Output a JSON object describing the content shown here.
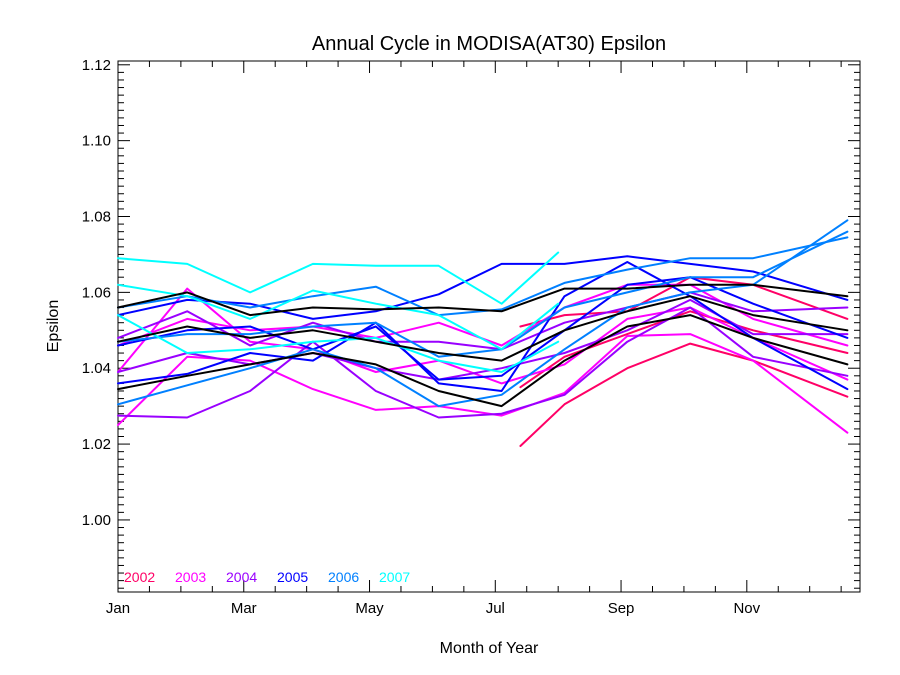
{
  "chart_data": {
    "type": "line",
    "title": "Annual Cycle in MODISA(AT30) Epsilon",
    "xlabel": "Month of Year",
    "ylabel": "Epsilon",
    "xlim": [
      1,
      12.8
    ],
    "ylim": [
      0.981,
      1.121
    ],
    "x_ticks": [
      1,
      3,
      5,
      7,
      9,
      11
    ],
    "x_tick_labels": [
      "Jan",
      "Mar",
      "May",
      "Jul",
      "Sep",
      "Nov"
    ],
    "y_ticks": [
      1.0,
      1.02,
      1.04,
      1.06,
      1.08,
      1.1,
      1.12
    ],
    "y_tick_labels": [
      "1.00",
      "1.02",
      "1.04",
      "1.06",
      "1.08",
      "1.10",
      "1.12"
    ],
    "legend_position": "bottom-left",
    "legend": [
      {
        "label": "2002",
        "color": "#ff0066"
      },
      {
        "label": "2003",
        "color": "#ff00ff"
      },
      {
        "label": "2004",
        "color": "#9900ff"
      },
      {
        "label": "2005",
        "color": "#0000ff"
      },
      {
        "label": "2006",
        "color": "#0080ff"
      },
      {
        "label": "2007",
        "color": "#00ffff"
      }
    ],
    "series": [
      {
        "color": "#ff0066",
        "x": [
          7.4,
          8.1,
          9.1,
          10.1,
          11.1,
          12.6
        ],
        "y": [
          1.0195,
          1.0305,
          1.04,
          1.0465,
          1.042,
          1.0325
        ]
      },
      {
        "color": "#ff0066",
        "x": [
          7.4,
          8.1,
          9.1,
          10.1,
          11.1,
          12.6
        ],
        "y": [
          1.035,
          1.043,
          1.049,
          1.055,
          1.05,
          1.044
        ]
      },
      {
        "color": "#ff0066",
        "x": [
          7.4,
          8.1,
          9.1,
          10.1,
          11.1,
          12.6
        ],
        "y": [
          1.051,
          1.054,
          1.055,
          1.064,
          1.062,
          1.053
        ]
      },
      {
        "color": "#ff00ff",
        "x": [
          1,
          2.1,
          3.1,
          4.1,
          5.1,
          6.1,
          7.1,
          8.1,
          9.1,
          10.1,
          11.1,
          12.6
        ],
        "y": [
          1.025,
          1.043,
          1.042,
          1.0345,
          1.029,
          1.03,
          1.0275,
          1.0335,
          1.0485,
          1.049,
          1.042,
          1.023
        ]
      },
      {
        "color": "#ff00ff",
        "x": [
          1,
          2.1,
          3.1,
          4.1,
          5.1,
          6.1,
          7.1,
          8.1,
          9.1,
          10.1,
          11.1,
          12.6
        ],
        "y": [
          1.039,
          1.061,
          1.047,
          1.045,
          1.039,
          1.042,
          1.036,
          1.041,
          1.053,
          1.056,
          1.048,
          1.037
        ]
      },
      {
        "color": "#ff00ff",
        "x": [
          1,
          2.1,
          3.1,
          4.1,
          5.1,
          6.1,
          7.1,
          8.1,
          9.1,
          10.1,
          11.1,
          12.6
        ],
        "y": [
          1.046,
          1.053,
          1.05,
          1.051,
          1.048,
          1.052,
          1.046,
          1.056,
          1.062,
          1.062,
          1.053,
          1.046
        ]
      },
      {
        "color": "#9900ff",
        "x": [
          1,
          2.1,
          3.1,
          4.1,
          5.1,
          6.1,
          7.1,
          8.1,
          9.1,
          10.1,
          11.1,
          12.6
        ],
        "y": [
          1.0275,
          1.027,
          1.034,
          1.047,
          1.034,
          1.027,
          1.028,
          1.033,
          1.047,
          1.056,
          1.043,
          1.038
        ]
      },
      {
        "color": "#9900ff",
        "x": [
          1,
          2.1,
          3.1,
          4.1,
          5.1,
          6.1,
          7.1,
          8.1,
          9.1,
          10.1,
          11.1,
          12.6
        ],
        "y": [
          1.039,
          1.044,
          1.041,
          1.044,
          1.04,
          1.037,
          1.04,
          1.044,
          1.05,
          1.058,
          1.049,
          1.049
        ]
      },
      {
        "color": "#9900ff",
        "x": [
          1,
          2.1,
          3.1,
          4.1,
          5.1,
          6.1,
          7.1,
          8.1,
          9.1,
          10.1,
          11.1,
          12.6
        ],
        "y": [
          1.048,
          1.055,
          1.046,
          1.052,
          1.047,
          1.047,
          1.045,
          1.052,
          1.056,
          1.06,
          1.055,
          1.056
        ]
      },
      {
        "color": "#0000ff",
        "x": [
          1,
          2.1,
          3.1,
          4.1,
          5.1,
          6.1,
          7.1,
          8.1,
          9.1,
          10.1,
          11.1,
          12.6
        ],
        "y": [
          1.036,
          1.0385,
          1.044,
          1.042,
          1.052,
          1.036,
          1.034,
          1.059,
          1.068,
          1.059,
          1.048,
          1.0345
        ]
      },
      {
        "color": "#0000ff",
        "x": [
          1,
          2.1,
          3.1,
          4.1,
          5.1,
          6.1,
          7.1,
          8.1,
          9.1,
          10.1,
          11.1,
          12.6
        ],
        "y": [
          1.046,
          1.05,
          1.051,
          1.045,
          1.051,
          1.037,
          1.038,
          1.05,
          1.062,
          1.064,
          1.057,
          1.048
        ]
      },
      {
        "color": "#0000ff",
        "x": [
          1,
          2.1,
          3.1,
          4.1,
          5.1,
          6.1,
          7.1,
          8.1,
          9.1,
          10.1,
          11.1,
          12.6
        ],
        "y": [
          1.054,
          1.058,
          1.057,
          1.053,
          1.055,
          1.0595,
          1.0675,
          1.0675,
          1.0695,
          1.0675,
          1.0655,
          1.058
        ]
      },
      {
        "color": "#0080ff",
        "x": [
          1,
          2.1,
          3.1,
          4.1,
          5.1,
          6.1,
          7.1,
          8.1,
          9.1,
          10.1,
          11.1,
          12.6
        ],
        "y": [
          1.0305,
          1.0355,
          1.04,
          1.045,
          1.04,
          1.03,
          1.033,
          1.045,
          1.056,
          1.06,
          1.062,
          1.079
        ]
      },
      {
        "color": "#0080ff",
        "x": [
          1,
          2.1,
          3.1,
          4.1,
          5.1,
          6.1,
          7.1,
          8.1,
          9.1,
          10.1,
          11.1,
          12.6
        ],
        "y": [
          1.047,
          1.049,
          1.049,
          1.051,
          1.052,
          1.043,
          1.045,
          1.056,
          1.06,
          1.064,
          1.064,
          1.076
        ]
      },
      {
        "color": "#0080ff",
        "x": [
          1,
          2.1,
          3.1,
          4.1,
          5.1,
          6.1,
          7.1,
          8.1,
          9.1,
          10.1,
          11.1,
          12.6
        ],
        "y": [
          1.056,
          1.059,
          1.056,
          1.059,
          1.0615,
          1.054,
          1.0555,
          1.0625,
          1.066,
          1.069,
          1.069,
          1.0745
        ]
      },
      {
        "color": "#00ffff",
        "x": [
          1,
          2.1,
          3.1,
          4.1,
          5.1,
          6.1,
          7.1,
          8.0
        ],
        "y": [
          1.069,
          1.0675,
          1.06,
          1.0675,
          1.067,
          1.067,
          1.057,
          1.0705
        ]
      },
      {
        "color": "#00ffff",
        "x": [
          1,
          2.1,
          3.1,
          4.1,
          5.1,
          6.1,
          7.1,
          8.0
        ],
        "y": [
          1.062,
          1.059,
          1.053,
          1.0605,
          1.057,
          1.054,
          1.045,
          1.057
        ]
      },
      {
        "color": "#00ffff",
        "x": [
          1,
          2.1,
          3.1,
          4.1,
          5.1,
          6.1,
          7.1,
          8.0
        ],
        "y": [
          1.054,
          1.044,
          1.045,
          1.047,
          1.048,
          1.042,
          1.039,
          1.047
        ]
      },
      {
        "color": "#000000",
        "x": [
          1,
          2.1,
          3.1,
          4.1,
          5.1,
          6.1,
          7.1,
          8.1,
          9.1,
          10.1,
          11.1,
          12.6
        ],
        "y": [
          1.0345,
          1.038,
          1.041,
          1.044,
          1.041,
          1.034,
          1.03,
          1.042,
          1.051,
          1.054,
          1.048,
          1.041
        ]
      },
      {
        "color": "#000000",
        "x": [
          1,
          2.1,
          3.1,
          4.1,
          5.1,
          6.1,
          7.1,
          8.1,
          9.1,
          10.1,
          11.1,
          12.6
        ],
        "y": [
          1.047,
          1.051,
          1.048,
          1.05,
          1.047,
          1.044,
          1.042,
          1.05,
          1.055,
          1.059,
          1.054,
          1.05
        ]
      },
      {
        "color": "#000000",
        "x": [
          1,
          2.1,
          3.1,
          4.1,
          5.1,
          6.1,
          7.1,
          8.1,
          9.1,
          10.1,
          11.1,
          12.6
        ],
        "y": [
          1.056,
          1.06,
          1.054,
          1.056,
          1.0555,
          1.056,
          1.055,
          1.061,
          1.061,
          1.062,
          1.062,
          1.059
        ]
      }
    ]
  }
}
